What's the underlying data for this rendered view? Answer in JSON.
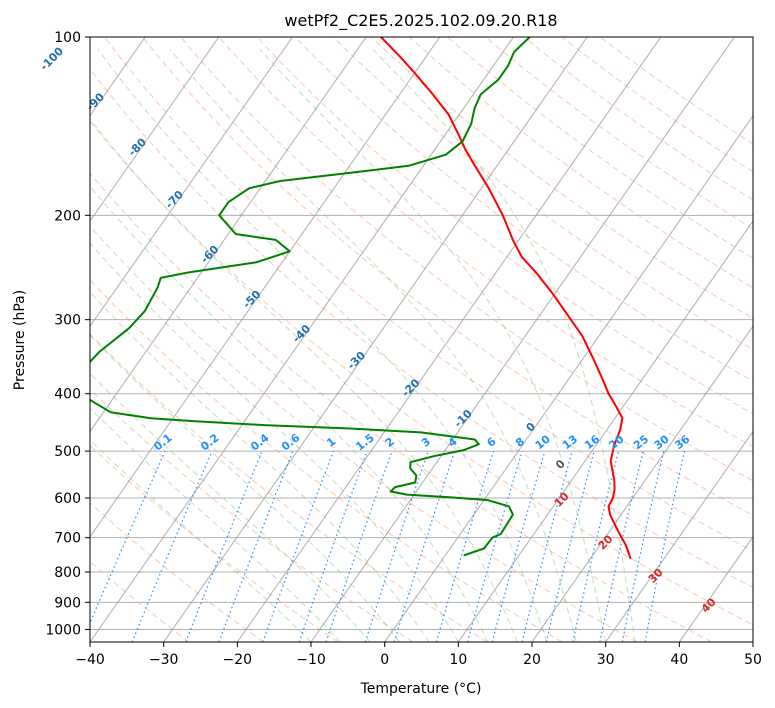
{
  "chart_data": {
    "type": "line",
    "subtype": "skew-T log-p diagram",
    "title": "wetPf2_C2E5.2025.102.09.20.R18",
    "xlabel": "Temperature (°C)",
    "ylabel": "Pressure (hPa)",
    "xlim": [
      -40,
      50
    ],
    "ylim": [
      1050,
      100
    ],
    "y_scale": "log",
    "grid": true,
    "x_ticks": [
      "−40",
      "−30",
      "−20",
      "−10",
      "0",
      "10",
      "20",
      "30",
      "40",
      "50"
    ],
    "y_ticks": [
      "100",
      "200",
      "300",
      "400",
      "500",
      "600",
      "700",
      "800",
      "900",
      "1000"
    ],
    "series": [
      {
        "role": "temperature",
        "color": "#ff0000",
        "points": [
          {
            "p": 760,
            "t": 25.5
          },
          {
            "p": 720,
            "t": 23.5
          },
          {
            "p": 680,
            "t": 21.0
          },
          {
            "p": 640,
            "t": 18.5
          },
          {
            "p": 620,
            "t": 17.5
          },
          {
            "p": 600,
            "t": 17.3
          },
          {
            "p": 580,
            "t": 16.7
          },
          {
            "p": 560,
            "t": 15.8
          },
          {
            "p": 520,
            "t": 13.5
          },
          {
            "p": 490,
            "t": 12.5
          },
          {
            "p": 460,
            "t": 11.8
          },
          {
            "p": 440,
            "t": 11.0
          },
          {
            "p": 420,
            "t": 9.0
          },
          {
            "p": 400,
            "t": 6.8
          },
          {
            "p": 380,
            "t": 4.8
          },
          {
            "p": 350,
            "t": 1.5
          },
          {
            "p": 320,
            "t": -2.2
          },
          {
            "p": 290,
            "t": -7.0
          },
          {
            "p": 270,
            "t": -10.5
          },
          {
            "p": 250,
            "t": -14.5
          },
          {
            "p": 235,
            "t": -18.0
          },
          {
            "p": 220,
            "t": -20.8
          },
          {
            "p": 200,
            "t": -24.5
          },
          {
            "p": 180,
            "t": -29.0
          },
          {
            "p": 165,
            "t": -33.0
          },
          {
            "p": 155,
            "t": -35.8
          },
          {
            "p": 145,
            "t": -38.5
          },
          {
            "p": 135,
            "t": -41.5
          },
          {
            "p": 125,
            "t": -45.5
          },
          {
            "p": 115,
            "t": -50.0
          },
          {
            "p": 108,
            "t": -53.5
          },
          {
            "p": 100,
            "t": -58.0
          }
        ]
      },
      {
        "role": "dewpoint",
        "color": "#008000",
        "points": [
          {
            "p": 750,
            "t": 2.5
          },
          {
            "p": 730,
            "t": 4.6
          },
          {
            "p": 700,
            "t": 4.7
          },
          {
            "p": 690,
            "t": 5.5
          },
          {
            "p": 665,
            "t": 5.4
          },
          {
            "p": 640,
            "t": 5.3
          },
          {
            "p": 620,
            "t": 4.0
          },
          {
            "p": 605,
            "t": 0.5
          },
          {
            "p": 598,
            "t": -5.0
          },
          {
            "p": 592,
            "t": -11.0
          },
          {
            "p": 585,
            "t": -13.5
          },
          {
            "p": 575,
            "t": -13.3
          },
          {
            "p": 565,
            "t": -11.0
          },
          {
            "p": 550,
            "t": -11.5
          },
          {
            "p": 535,
            "t": -13.0
          },
          {
            "p": 522,
            "t": -13.6
          },
          {
            "p": 510,
            "t": -11.0
          },
          {
            "p": 498,
            "t": -7.5
          },
          {
            "p": 487,
            "t": -6.0
          },
          {
            "p": 478,
            "t": -7.0
          },
          {
            "p": 465,
            "t": -15.0
          },
          {
            "p": 458,
            "t": -25.0
          },
          {
            "p": 452,
            "t": -37.0
          },
          {
            "p": 445,
            "t": -47.0
          },
          {
            "p": 440,
            "t": -53.0
          },
          {
            "p": 430,
            "t": -59.0
          },
          {
            "p": 400,
            "t": -65.0
          },
          {
            "p": 390,
            "t": -66.0
          },
          {
            "p": 370,
            "t": -67.0
          },
          {
            "p": 340,
            "t": -66.3
          },
          {
            "p": 310,
            "t": -64.5
          },
          {
            "p": 290,
            "t": -64.0
          },
          {
            "p": 265,
            "t": -64.5
          },
          {
            "p": 255,
            "t": -65.0
          },
          {
            "p": 250,
            "t": -62.0
          },
          {
            "p": 240,
            "t": -53.5
          },
          {
            "p": 230,
            "t": -50.0
          },
          {
            "p": 220,
            "t": -53.0
          },
          {
            "p": 215,
            "t": -59.0
          },
          {
            "p": 200,
            "t": -63.0
          },
          {
            "p": 190,
            "t": -63.0
          },
          {
            "p": 180,
            "t": -61.5
          },
          {
            "p": 175,
            "t": -58.0
          },
          {
            "p": 170,
            "t": -50.0
          },
          {
            "p": 165,
            "t": -42.0
          },
          {
            "p": 158,
            "t": -38.0
          },
          {
            "p": 150,
            "t": -37.0
          },
          {
            "p": 140,
            "t": -37.5
          },
          {
            "p": 132,
            "t": -38.5
          },
          {
            "p": 125,
            "t": -39.0
          },
          {
            "p": 118,
            "t": -38.0
          },
          {
            "p": 112,
            "t": -38.0
          },
          {
            "p": 106,
            "t": -38.5
          },
          {
            "p": 100,
            "t": -37.8
          }
        ]
      }
    ],
    "reference_lines": {
      "isotherms": {
        "color": "#999999",
        "step_c": 10
      },
      "dry_adiabats": {
        "color": "#ff7f50",
        "style": "dashed"
      },
      "moist_adiabats": {
        "color": "#5fae5f",
        "style": "dashed"
      },
      "mixing_ratio": {
        "color": "#1e90ff",
        "style": "dotted",
        "labels": [
          "0.1",
          "0.2",
          "0.4",
          "0.6",
          "1",
          "1.5",
          "2",
          "3",
          "4",
          "6",
          "8",
          "10",
          "13",
          "16",
          "20",
          "25",
          "30",
          "36"
        ]
      }
    },
    "annotations": {
      "blue_isotherm_labels": [
        "-100",
        "-90",
        "-80",
        "-70",
        "-60",
        "-50",
        "-40",
        "-30",
        "-20",
        "-10",
        "0"
      ],
      "red_isotherm_labels": [
        "10",
        "20",
        "30",
        "40"
      ],
      "dark_label": "0"
    }
  }
}
